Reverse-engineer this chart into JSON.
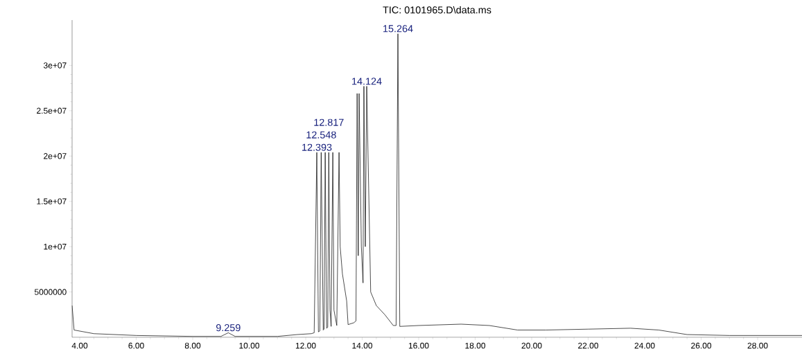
{
  "chart_data": {
    "type": "line",
    "title": "TIC: 0101965.D\\data.ms",
    "x": [
      3.73,
      3.8,
      4.5,
      6,
      8,
      9.0,
      9.259,
      9.5,
      11,
      11.7,
      12.2,
      12.3,
      12.393,
      12.45,
      12.5,
      12.548,
      12.62,
      12.65,
      12.69,
      12.74,
      12.78,
      12.817,
      12.86,
      12.9,
      12.96,
      13.0,
      13.1,
      13.18,
      13.22,
      13.3,
      13.45,
      13.5,
      13.7,
      13.78,
      13.82,
      13.86,
      13.89,
      13.97,
      14.03,
      14.06,
      14.11,
      14.16,
      14.3,
      14.5,
      14.8,
      15.1,
      15.2,
      15.264,
      15.33,
      16,
      17.5,
      18.5,
      19.5,
      20.5,
      22,
      23.5,
      24.5,
      25.5,
      27,
      29.57
    ],
    "series": [
      {
        "color": "#000000",
        "values": [
          3500000,
          800000,
          400000,
          200000,
          100000,
          100000,
          500000,
          100000,
          100000,
          300000,
          400000,
          500000,
          20400000,
          600000,
          700000,
          20400000,
          800000,
          900000,
          20400000,
          1000000,
          1100000,
          20400000,
          3000000,
          1200000,
          20400000,
          3000000,
          1300000,
          20400000,
          10000000,
          7000000,
          4000000,
          1400000,
          1600000,
          1800000,
          26900000,
          9000000,
          26900000,
          10000000,
          6000000,
          27700000,
          10000000,
          27700000,
          5000000,
          3500000,
          2500000,
          1300000,
          1300000,
          33500000,
          1200000,
          1300000,
          1450000,
          1300000,
          800000,
          800000,
          900000,
          1000000,
          800000,
          300000,
          200000,
          200000
        ]
      }
    ],
    "xlim": [
      3.73,
      29.57
    ],
    "xticks": [
      {
        "value": 4,
        "label": "4.00"
      },
      {
        "value": 6,
        "label": "6.00"
      },
      {
        "value": 8,
        "label": "8.00"
      },
      {
        "value": 10,
        "label": "10.00"
      },
      {
        "value": 12,
        "label": "12.00"
      },
      {
        "value": 14,
        "label": "14.00"
      },
      {
        "value": 16,
        "label": "16.00"
      },
      {
        "value": 18,
        "label": "18.00"
      },
      {
        "value": 20,
        "label": "20.00"
      },
      {
        "value": 22,
        "label": "22.00"
      },
      {
        "value": 24,
        "label": "24.00"
      },
      {
        "value": 26,
        "label": "26.00"
      },
      {
        "value": 28,
        "label": "28.00"
      }
    ],
    "ylim": [
      0,
      35000000
    ],
    "yticks": [
      5000000,
      {
        "value": 10000000,
        "label": "1e+07"
      },
      {
        "value": 15000000,
        "label": "1.5e+07"
      },
      {
        "value": 20000000,
        "label": "2e+07"
      },
      {
        "value": 25000000,
        "label": "2.5e+07"
      },
      {
        "value": 30000000,
        "label": "3e+07"
      }
    ],
    "annotations": [
      {
        "text": "9.259",
        "x": 9.259,
        "y": 500000
      },
      {
        "text": "12.393",
        "x": 12.393,
        "y": 20400000
      },
      {
        "text": "12.548",
        "x": 12.548,
        "y": 20400000
      },
      {
        "text": "12.817",
        "x": 12.817,
        "y": 20400000
      },
      {
        "text": "14.124",
        "x": 14.16,
        "y": 27700000
      },
      {
        "text": "15.264",
        "x": 15.264,
        "y": 33500000
      }
    ],
    "grid": false
  }
}
